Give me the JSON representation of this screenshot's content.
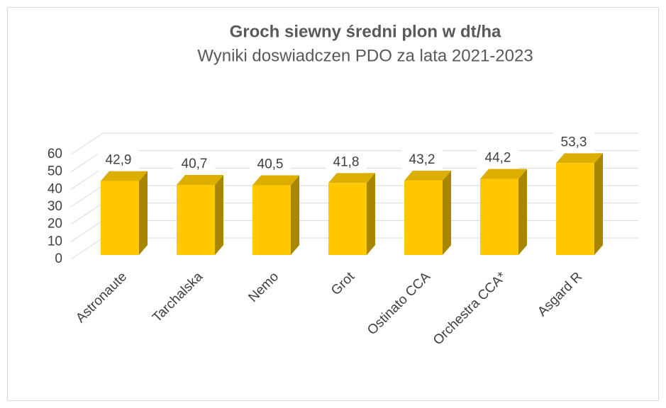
{
  "chart_data": {
    "type": "bar3d",
    "title": "Groch siewny średni plon w dt/ha",
    "subtitle": "Wyniki doswiadczen PDO za lata 2021-2023",
    "categories": [
      "Astronaute",
      "Tarchalska",
      "Nemo",
      "Grot",
      "Ostinato CCA",
      "Orchestra CCA*",
      "Asgard R"
    ],
    "values": [
      42.9,
      40.7,
      40.5,
      41.8,
      43.2,
      44.2,
      53.3
    ],
    "value_labels": [
      "42,9",
      "40,7",
      "40,5",
      "41,8",
      "43,2",
      "44,2",
      "53,3"
    ],
    "color": "#ffc800",
    "ylim": [
      0,
      60
    ],
    "yticks": [
      0,
      10,
      20,
      30,
      40,
      50,
      60
    ],
    "grid": true
  }
}
